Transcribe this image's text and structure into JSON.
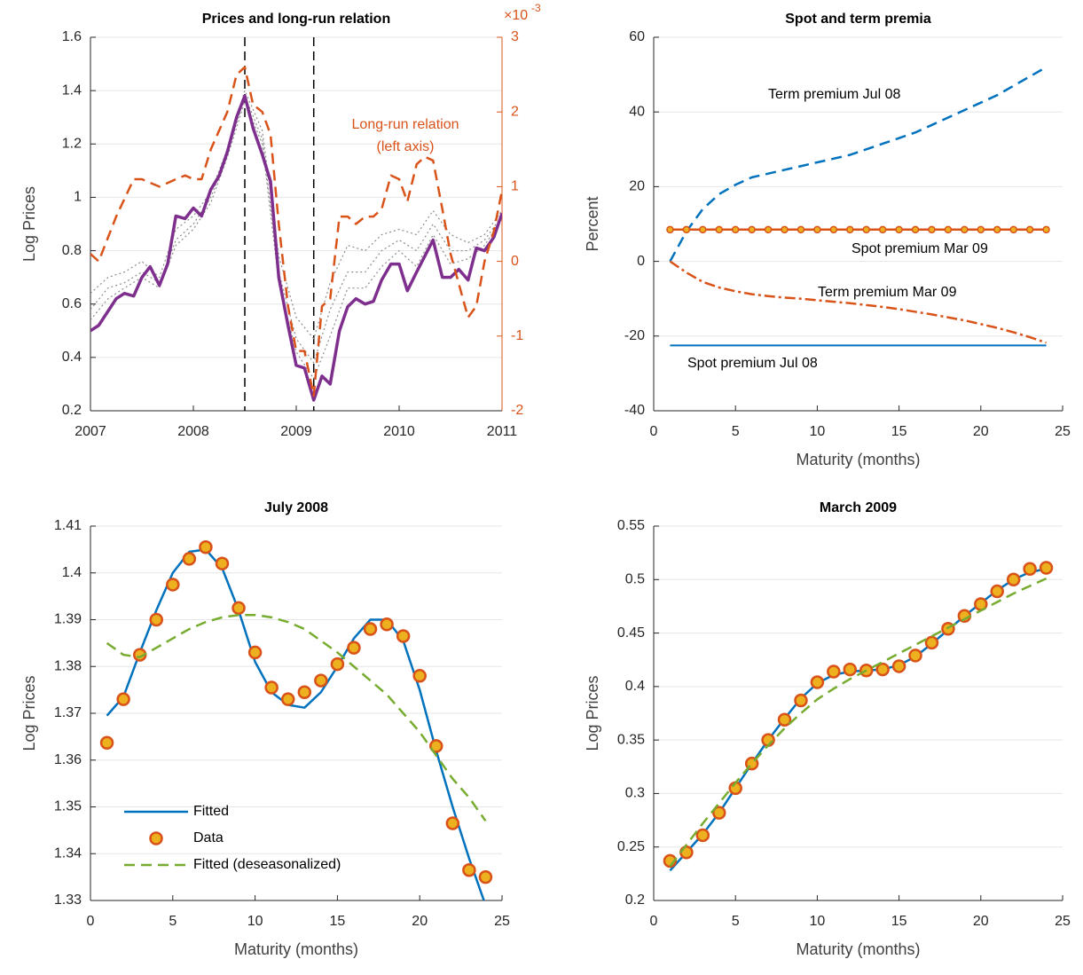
{
  "chart_data": [
    {
      "type": "line",
      "title": "Prices and long-run relation",
      "ylabel": "Log Prices",
      "xlim": [
        2007,
        2011
      ],
      "xticks": [
        2007,
        2008,
        2009,
        2010,
        2011
      ],
      "ylim": [
        0.2,
        1.6
      ],
      "yticks": [
        0.2,
        0.4,
        0.6,
        0.8,
        1,
        1.2,
        1.4,
        1.6
      ],
      "y2lim": [
        -2,
        3
      ],
      "y2ticks": [
        -2,
        -1,
        0,
        1,
        2,
        3
      ],
      "y2color": "#d95319",
      "y2_multiplier": {
        "base": "×10",
        "exponent": "-3"
      },
      "annotation": [
        "Long-run relation",
        "(left axis)"
      ],
      "grid": true,
      "vlines": [
        2008.5,
        2009.17
      ],
      "series": [
        {
          "color": "#8c8c8c",
          "linestyle": "dotted",
          "linewidth": 1.2,
          "x": [
            2007,
            2007.17,
            2007.33,
            2007.5,
            2007.67,
            2007.83,
            2008,
            2008.17,
            2008.33,
            2008.5,
            2008.67,
            2008.83,
            2009,
            2009.17,
            2009.33,
            2009.5,
            2009.67,
            2009.83,
            2010,
            2010.17,
            2010.33,
            2010.5,
            2010.67,
            2010.83,
            2011
          ],
          "values": [
            0.64,
            0.7,
            0.72,
            0.76,
            0.7,
            0.88,
            0.93,
            1.02,
            1.18,
            1.4,
            1.25,
            0.78,
            0.55,
            0.47,
            0.68,
            0.82,
            0.8,
            0.86,
            0.88,
            0.86,
            0.95,
            0.86,
            0.83,
            0.86,
            0.95
          ]
        },
        {
          "color": "#8c8c8c",
          "linestyle": "dotted",
          "linewidth": 1.2,
          "x": [
            2007,
            2007.17,
            2007.33,
            2007.5,
            2007.67,
            2007.83,
            2008,
            2008.17,
            2008.33,
            2008.5,
            2008.67,
            2008.83,
            2009,
            2009.17,
            2009.33,
            2009.5,
            2009.67,
            2009.83,
            2010,
            2010.17,
            2010.33,
            2010.5,
            2010.67,
            2010.83,
            2011
          ],
          "values": [
            0.58,
            0.66,
            0.68,
            0.72,
            0.68,
            0.84,
            0.9,
            1.0,
            1.16,
            1.38,
            1.22,
            0.72,
            0.47,
            0.38,
            0.58,
            0.72,
            0.72,
            0.8,
            0.84,
            0.8,
            0.9,
            0.8,
            0.8,
            0.84,
            0.93
          ]
        },
        {
          "color": "#8c8c8c",
          "linestyle": "dotted",
          "linewidth": 1.2,
          "x": [
            2007,
            2007.17,
            2007.33,
            2007.5,
            2007.67,
            2007.83,
            2008,
            2008.17,
            2008.33,
            2008.5,
            2008.67,
            2008.83,
            2009,
            2009.17,
            2009.33,
            2009.5,
            2009.67,
            2009.83,
            2010,
            2010.17,
            2010.33,
            2010.5,
            2010.67,
            2010.83,
            2011
          ],
          "values": [
            0.54,
            0.62,
            0.66,
            0.7,
            0.66,
            0.82,
            0.88,
            0.98,
            1.15,
            1.36,
            1.2,
            0.68,
            0.42,
            0.32,
            0.48,
            0.66,
            0.66,
            0.74,
            0.8,
            0.74,
            0.86,
            0.75,
            0.77,
            0.82,
            0.92
          ]
        },
        {
          "color": "#7e2f8e",
          "linestyle": "solid",
          "linewidth": 3.5,
          "x": [
            2007,
            2007.08,
            2007.25,
            2007.33,
            2007.42,
            2007.5,
            2007.58,
            2007.67,
            2007.75,
            2007.83,
            2007.92,
            2008,
            2008.08,
            2008.17,
            2008.25,
            2008.33,
            2008.42,
            2008.5,
            2008.58,
            2008.67,
            2008.75,
            2008.83,
            2008.92,
            2009,
            2009.08,
            2009.17,
            2009.25,
            2009.33,
            2009.42,
            2009.5,
            2009.58,
            2009.67,
            2009.75,
            2009.83,
            2009.92,
            2010,
            2010.08,
            2010.17,
            2010.25,
            2010.33,
            2010.42,
            2010.5,
            2010.58,
            2010.67,
            2010.75,
            2010.83,
            2010.92,
            2011
          ],
          "values": [
            0.5,
            0.52,
            0.62,
            0.64,
            0.63,
            0.7,
            0.74,
            0.67,
            0.75,
            0.93,
            0.92,
            0.96,
            0.93,
            1.03,
            1.08,
            1.17,
            1.3,
            1.38,
            1.26,
            1.16,
            1.06,
            0.7,
            0.52,
            0.37,
            0.36,
            0.24,
            0.33,
            0.3,
            0.5,
            0.59,
            0.62,
            0.6,
            0.61,
            0.69,
            0.75,
            0.75,
            0.65,
            0.72,
            0.78,
            0.84,
            0.7,
            0.7,
            0.73,
            0.69,
            0.81,
            0.8,
            0.85,
            0.94
          ]
        },
        {
          "color": "#d95319",
          "linestyle": "dashed",
          "linewidth": 2.5,
          "axis": "y2",
          "x": [
            2007,
            2007.08,
            2007.25,
            2007.42,
            2007.5,
            2007.67,
            2007.83,
            2007.92,
            2008,
            2008.08,
            2008.17,
            2008.33,
            2008.42,
            2008.5,
            2008.58,
            2008.67,
            2008.75,
            2008.83,
            2008.92,
            2009,
            2009.08,
            2009.17,
            2009.25,
            2009.33,
            2009.42,
            2009.5,
            2009.58,
            2009.67,
            2009.75,
            2009.83,
            2009.92,
            2010,
            2010.08,
            2010.17,
            2010.25,
            2010.33,
            2010.42,
            2010.5,
            2010.58,
            2010.67,
            2010.75,
            2010.83,
            2010.92,
            2011
          ],
          "values": [
            0.1,
            0.0,
            0.6,
            1.1,
            1.1,
            1.0,
            1.1,
            1.15,
            1.1,
            1.1,
            1.5,
            2.0,
            2.5,
            2.6,
            2.1,
            2.0,
            1.7,
            0.5,
            -0.6,
            -1.2,
            -1.2,
            -1.8,
            -0.6,
            -0.5,
            0.6,
            0.6,
            0.5,
            0.6,
            0.6,
            0.7,
            1.15,
            1.1,
            0.8,
            1.3,
            1.4,
            1.35,
            0.7,
            0.1,
            -0.3,
            -0.75,
            -0.6,
            0.0,
            0.4,
            0.95
          ]
        }
      ]
    },
    {
      "type": "line",
      "title": "Spot and term premia",
      "xlabel": "Maturity (months)",
      "ylabel": "Percent",
      "xlim": [
        0,
        25
      ],
      "xticks": [
        0,
        5,
        10,
        15,
        20,
        25
      ],
      "ylim": [
        -40,
        60
      ],
      "yticks": [
        -40,
        -20,
        0,
        20,
        40,
        60
      ],
      "grid": true,
      "x": [
        1,
        2,
        3,
        4,
        5,
        6,
        7,
        8,
        9,
        10,
        11,
        12,
        13,
        14,
        15,
        16,
        17,
        18,
        19,
        20,
        21,
        22,
        23,
        24
      ],
      "series": [
        {
          "name": "Term premium Jul 08",
          "color": "#0072bd",
          "linestyle": "dashed",
          "linewidth": 2.5,
          "values": [
            0,
            8,
            14,
            18,
            20.5,
            22.5,
            23.5,
            24.5,
            25.5,
            26.5,
            27.5,
            28.5,
            30,
            31.5,
            33,
            34.5,
            36.5,
            38.5,
            40.5,
            42.5,
            44.5,
            47,
            49.5,
            52
          ]
        },
        {
          "name": "Spot premium Mar 09",
          "color": "#d95319",
          "linestyle": "solid",
          "linewidth": 2.5,
          "marker": "o",
          "values": [
            8.5,
            8.5,
            8.5,
            8.5,
            8.5,
            8.5,
            8.5,
            8.5,
            8.5,
            8.5,
            8.5,
            8.5,
            8.5,
            8.5,
            8.5,
            8.5,
            8.5,
            8.5,
            8.5,
            8.5,
            8.5,
            8.5,
            8.5,
            8.5
          ]
        },
        {
          "name": "Term premium Mar 09",
          "color": "#d95319",
          "linestyle": "dashdot",
          "linewidth": 2.5,
          "values": [
            0,
            -3,
            -5.5,
            -7,
            -8,
            -8.8,
            -9.3,
            -9.7,
            -10,
            -10.4,
            -10.8,
            -11.2,
            -11.7,
            -12.2,
            -12.8,
            -13.5,
            -14.2,
            -15,
            -15.8,
            -16.8,
            -17.8,
            -19,
            -20.3,
            -21.8
          ]
        },
        {
          "name": "Spot premium Jul 08",
          "color": "#0072bd",
          "linestyle": "solid",
          "linewidth": 2,
          "values": [
            -22.5,
            -22.5,
            -22.5,
            -22.5,
            -22.5,
            -22.5,
            -22.5,
            -22.5,
            -22.5,
            -22.5,
            -22.5,
            -22.5,
            -22.5,
            -22.5,
            -22.5,
            -22.5,
            -22.5,
            -22.5,
            -22.5,
            -22.5,
            -22.5,
            -22.5,
            -22.5,
            -22.5
          ]
        }
      ]
    },
    {
      "type": "line",
      "title": "July 2008",
      "xlabel": "Maturity (months)",
      "ylabel": "Log Prices",
      "xlim": [
        0,
        25
      ],
      "xticks": [
        0,
        5,
        10,
        15,
        20,
        25
      ],
      "ylim": [
        1.33,
        1.41
      ],
      "yticks": [
        1.33,
        1.34,
        1.35,
        1.36,
        1.37,
        1.38,
        1.39,
        1.4,
        1.41
      ],
      "grid": true,
      "legend": "lower left",
      "x": [
        1,
        2,
        3,
        4,
        5,
        6,
        7,
        8,
        9,
        10,
        11,
        12,
        13,
        14,
        15,
        16,
        17,
        18,
        19,
        20,
        21,
        22,
        23,
        24
      ],
      "series": [
        {
          "name": "Fitted",
          "color": "#0072bd",
          "linestyle": "solid",
          "linewidth": 2.5,
          "values": [
            1.3695,
            1.3735,
            1.383,
            1.392,
            1.4,
            1.4045,
            1.405,
            1.401,
            1.392,
            1.381,
            1.3745,
            1.3718,
            1.3712,
            1.3745,
            1.38,
            1.386,
            1.39,
            1.39,
            1.3855,
            1.375,
            1.362,
            1.35,
            1.339,
            1.329
          ]
        },
        {
          "name": "Data",
          "color": "#d95319",
          "fill": "#edb120",
          "linestyle": "none",
          "marker": "o",
          "values": [
            1.3637,
            1.373,
            1.3825,
            1.39,
            1.3975,
            1.403,
            1.4055,
            1.402,
            1.3925,
            1.383,
            1.3755,
            1.373,
            1.3745,
            1.377,
            1.3805,
            1.384,
            1.388,
            1.389,
            1.3865,
            1.378,
            1.363,
            1.3465,
            1.3365,
            1.335
          ]
        },
        {
          "name": "Fitted (deseasonalized)",
          "color": "#77ac30",
          "linestyle": "dashed",
          "linewidth": 2.5,
          "values": [
            1.385,
            1.3825,
            1.382,
            1.384,
            1.386,
            1.388,
            1.3895,
            1.3905,
            1.391,
            1.391,
            1.3905,
            1.3895,
            1.388,
            1.3855,
            1.383,
            1.38,
            1.377,
            1.374,
            1.37,
            1.366,
            1.361,
            1.356,
            1.352,
            1.347
          ]
        }
      ]
    },
    {
      "type": "line",
      "title": "March 2009",
      "xlabel": "Maturity (months)",
      "ylabel": "Log Prices",
      "xlim": [
        0,
        25
      ],
      "xticks": [
        0,
        5,
        10,
        15,
        20,
        25
      ],
      "ylim": [
        0.2,
        0.55
      ],
      "yticks": [
        0.2,
        0.25,
        0.3,
        0.35,
        0.4,
        0.45,
        0.5,
        0.55
      ],
      "grid": true,
      "x": [
        1,
        2,
        3,
        4,
        5,
        6,
        7,
        8,
        9,
        10,
        11,
        12,
        13,
        14,
        15,
        16,
        17,
        18,
        19,
        20,
        21,
        22,
        23,
        24
      ],
      "series": [
        {
          "color": "#0072bd",
          "linestyle": "solid",
          "linewidth": 2.5,
          "values": [
            0.228,
            0.245,
            0.262,
            0.282,
            0.305,
            0.328,
            0.35,
            0.37,
            0.389,
            0.403,
            0.411,
            0.414,
            0.415,
            0.416,
            0.42,
            0.428,
            0.44,
            0.453,
            0.466,
            0.478,
            0.49,
            0.5,
            0.507,
            0.51
          ]
        },
        {
          "color": "#d95319",
          "fill": "#edb120",
          "linestyle": "none",
          "marker": "o",
          "values": [
            0.237,
            0.245,
            0.261,
            0.282,
            0.305,
            0.328,
            0.35,
            0.369,
            0.387,
            0.404,
            0.414,
            0.416,
            0.415,
            0.416,
            0.419,
            0.429,
            0.441,
            0.454,
            0.466,
            0.477,
            0.489,
            0.5,
            0.51,
            0.511
          ]
        },
        {
          "color": "#77ac30",
          "linestyle": "dashed",
          "linewidth": 2.5,
          "values": [
            0.232,
            0.252,
            0.272,
            0.291,
            0.31,
            0.328,
            0.345,
            0.361,
            0.375,
            0.388,
            0.398,
            0.407,
            0.415,
            0.423,
            0.431,
            0.439,
            0.447,
            0.455,
            0.463,
            0.471,
            0.479,
            0.487,
            0.494,
            0.501
          ]
        }
      ]
    }
  ]
}
